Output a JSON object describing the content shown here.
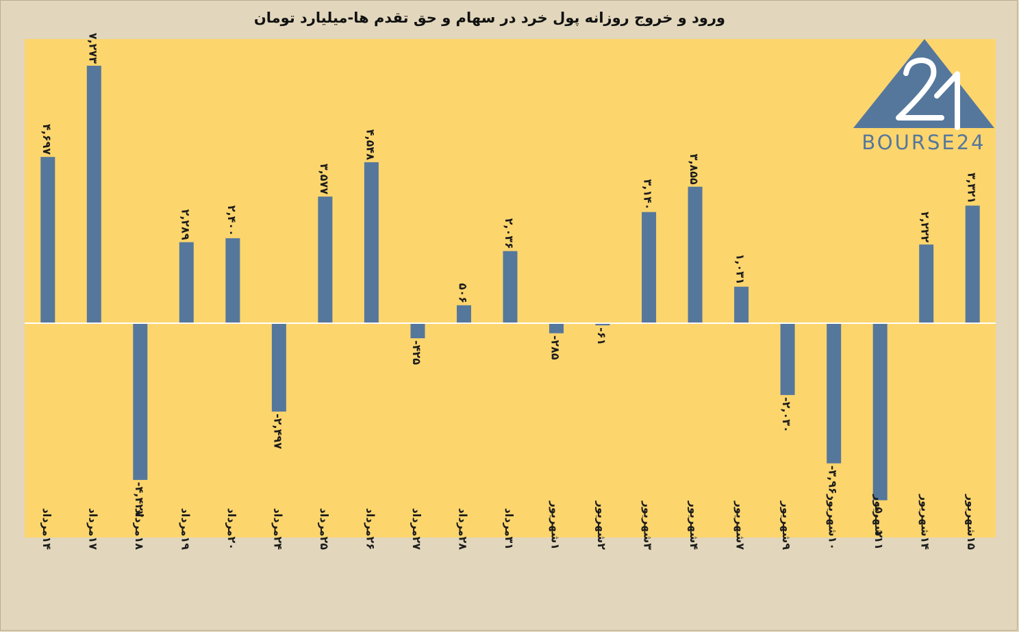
{
  "title": "ورود و خروج روزانه پول خرد در سهام و حق تقدم ها-میلیارد تومان",
  "logo": {
    "text": "BOURSE24",
    "mark": "24"
  },
  "colors": {
    "plot_bg": "#fcd56d",
    "page_bg": "#e2d7bc",
    "bar": "#55779c"
  },
  "chart_data": {
    "type": "bar",
    "title": "ورود و خروج روزانه پول خرد در سهام و حق تقدم ها-میلیارد تومان",
    "categories": [
      "۱۴مرداد",
      "۱۷مرداد",
      "۱۸مرداد",
      "۱۹مرداد",
      "۲۰مرداد",
      "۲۴مرداد",
      "۲۵مرداد",
      "۲۶مرداد",
      "۲۷مرداد",
      "۲۸مرداد",
      "۳۱مرداد",
      "۱شهریور",
      "۲شهریور",
      "۳شهریور",
      "۴شهریور",
      "۷شهریور",
      "۹شهریور",
      "۱۰شهریور",
      "۱۱شهریور",
      "۱۴شهریور",
      "۱۵شهریور"
    ],
    "values": [
      4697,
      7273,
      -4427,
      2289,
      2400,
      -2497,
      3577,
      4548,
      -425,
      506,
      2036,
      -285,
      -61,
      3140,
      3855,
      1031,
      -2030,
      -3960,
      -5002,
      2222,
      3321
    ],
    "value_labels": [
      "۴,۶۹۷",
      "۷,۲۷۳",
      "-۴,۴۲۷",
      "۲,۲۸۹",
      "۲,۴۰۰",
      "-۲,۴۹۷",
      "۳,۵۷۷",
      "۴,۵۴۸",
      "-۴۲۵",
      "۵۰۶",
      "۲,۰۳۶",
      "-۲۸۵",
      "-۶۱",
      "۳,۱۴۰",
      "۳,۸۵۵",
      "۱,۰۳۱",
      "-۲,۰۳۰",
      "-۳,۹۶۰",
      "-۵,۰۰۲",
      "۲,۲۲۲",
      "۳,۳۲۱"
    ],
    "ylim": [
      -6000,
      8000
    ],
    "xlabel": "",
    "ylabel": "",
    "grid": false,
    "legend": "none"
  }
}
